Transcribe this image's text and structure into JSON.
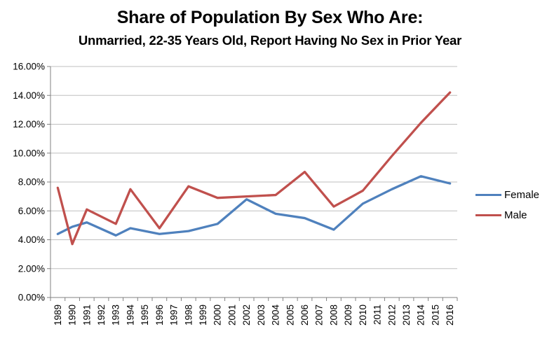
{
  "chart_data": {
    "type": "line",
    "title": "Share of Population By Sex Who Are:",
    "subtitle": "Unmarried, 22-35 Years Old, Report Having No Sex in Prior Year",
    "categories": [
      "1989",
      "1990",
      "1991",
      "1992",
      "1993",
      "1994",
      "1995",
      "1996",
      "1997",
      "1998",
      "1999",
      "2000",
      "2001",
      "2002",
      "2003",
      "2004",
      "2005",
      "2006",
      "2007",
      "2008",
      "2009",
      "2010",
      "2011",
      "2012",
      "2013",
      "2014",
      "2015",
      "2016"
    ],
    "ylim": [
      0,
      16
    ],
    "y_tick_step": 2,
    "y_tick_labels": [
      "0.00%",
      "2.00%",
      "4.00%",
      "6.00%",
      "8.00%",
      "10.00%",
      "12.00%",
      "14.00%",
      "16.00%"
    ],
    "x_tick_rotation": -90,
    "grid": true,
    "legend_position": "right",
    "series": [
      {
        "name": "Female",
        "color": "#4F81BD",
        "points": [
          [
            1989,
            4.4
          ],
          [
            1990,
            4.9
          ],
          [
            1991,
            5.2
          ],
          [
            1993,
            4.3
          ],
          [
            1994,
            4.8
          ],
          [
            1996,
            4.4
          ],
          [
            1998,
            4.6
          ],
          [
            2000,
            5.1
          ],
          [
            2002,
            6.8
          ],
          [
            2004,
            5.8
          ],
          [
            2006,
            5.5
          ],
          [
            2008,
            4.7
          ],
          [
            2010,
            6.5
          ],
          [
            2012,
            7.5
          ],
          [
            2014,
            8.4
          ],
          [
            2016,
            7.9
          ]
        ]
      },
      {
        "name": "Male",
        "color": "#C0504D",
        "points": [
          [
            1989,
            7.6
          ],
          [
            1990,
            3.7
          ],
          [
            1991,
            6.1
          ],
          [
            1993,
            5.1
          ],
          [
            1994,
            7.5
          ],
          [
            1996,
            4.8
          ],
          [
            1998,
            7.7
          ],
          [
            2000,
            6.9
          ],
          [
            2002,
            7.0
          ],
          [
            2004,
            7.1
          ],
          [
            2006,
            8.7
          ],
          [
            2008,
            6.3
          ],
          [
            2010,
            7.4
          ],
          [
            2012,
            9.8
          ],
          [
            2014,
            12.1
          ],
          [
            2016,
            14.2
          ]
        ]
      }
    ]
  }
}
